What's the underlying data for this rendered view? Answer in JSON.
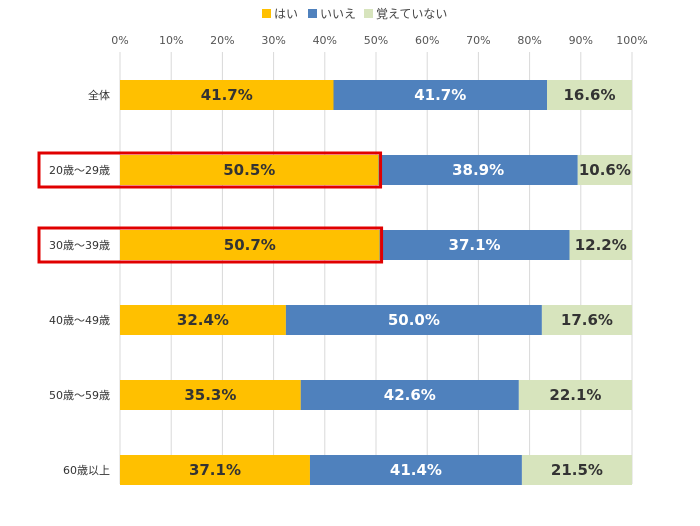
{
  "chart_data": {
    "type": "bar",
    "orientation": "horizontal",
    "stacked": true,
    "title": "",
    "xlabel": "",
    "ylabel": "",
    "xlim": [
      0,
      100
    ],
    "x_ticks": [
      "0%",
      "10%",
      "20%",
      "30%",
      "40%",
      "50%",
      "60%",
      "70%",
      "80%",
      "90%",
      "100%"
    ],
    "grid": "vertical",
    "legend_position": "top-center",
    "categories": [
      "全体",
      "20歳～29歳",
      "30歳～39歳",
      "40歳～49歳",
      "50歳～59歳",
      "60歳以上"
    ],
    "highlighted_categories": [
      "20歳～29歳",
      "30歳～39歳"
    ],
    "highlight_color": "#e00000",
    "series": [
      {
        "name": "はい",
        "color": "#ffc000",
        "label_color": "#333333",
        "values": [
          41.7,
          50.5,
          50.7,
          32.4,
          35.3,
          37.1
        ],
        "labels": [
          "41.7%",
          "50.5%",
          "50.7%",
          "32.4%",
          "35.3%",
          "37.1%"
        ]
      },
      {
        "name": "いいえ",
        "color": "#4f81bd",
        "label_color": "#ffffff",
        "values": [
          41.7,
          38.9,
          37.1,
          50.0,
          42.6,
          41.4
        ],
        "labels": [
          "41.7%",
          "38.9%",
          "37.1%",
          "50.0%",
          "42.6%",
          "41.4%"
        ]
      },
      {
        "name": "覚えていない",
        "color": "#d7e4bd",
        "label_color": "#333333",
        "values": [
          16.6,
          10.6,
          12.2,
          17.6,
          22.1,
          21.5
        ],
        "labels": [
          "16.6%",
          "10.6%",
          "12.2%",
          "17.6%",
          "22.1%",
          "21.5%"
        ]
      }
    ]
  }
}
